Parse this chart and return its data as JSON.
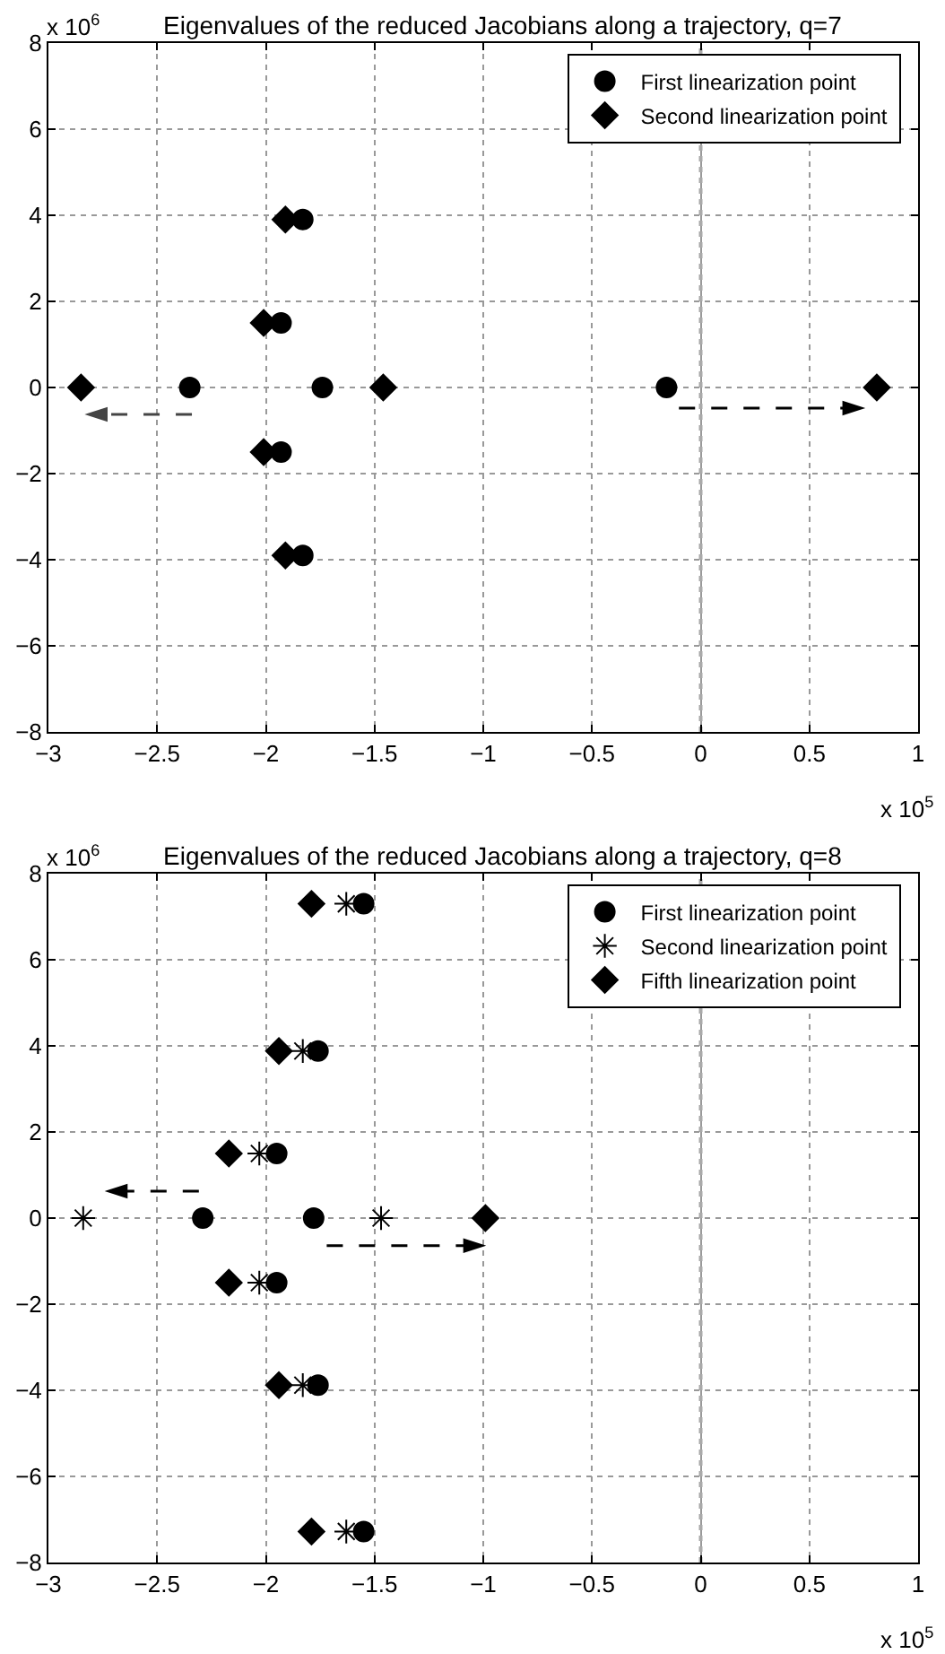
{
  "chart_data": [
    {
      "type": "scatter",
      "title": "Eigenvalues of the reduced Jacobians along a trajectory, q=7",
      "xlim": [
        -3,
        1
      ],
      "xticks": [
        -3,
        -2.5,
        -2,
        -1.5,
        -1,
        -0.5,
        0,
        0.5,
        1
      ],
      "ylim": [
        -8,
        8
      ],
      "yticks": [
        -8,
        -6,
        -4,
        -2,
        0,
        2,
        4,
        6,
        8
      ],
      "grid": true,
      "legend": "top right",
      "annotations": [
        "x 10$^{6}$",
        "x 10$^{5}$"
      ],
      "ref_lines": [
        {
          "axis": "x",
          "value": 0,
          "color": "#aaaaaa",
          "line_style": "dotted"
        }
      ],
      "series": [
        {
          "name": "First linearization point",
          "color": "#000000",
          "marker": "circle",
          "x": [
            -1.83,
            -1.93,
            -2.35,
            -1.74,
            -0.157,
            -1.93,
            -1.83
          ],
          "values": [
            3.9,
            1.5,
            0,
            0,
            0,
            -1.5,
            -3.9
          ]
        },
        {
          "name": "Second linearization point",
          "color": "#000000",
          "marker": "diamond",
          "x": [
            -1.91,
            -2.01,
            -2.85,
            -1.46,
            0.81,
            -2.01,
            -1.91
          ],
          "values": [
            3.9,
            1.5,
            0,
            0,
            0,
            -1.5,
            -3.9
          ]
        }
      ]
    },
    {
      "type": "scatter",
      "title": "Eigenvalues of the reduced Jacobians along a trajectory, q=8",
      "xlim": [
        -3,
        1
      ],
      "xticks": [
        -3,
        -2.5,
        -2,
        -1.5,
        -1,
        -0.5,
        0,
        0.5,
        1
      ],
      "ylim": [
        -8,
        8
      ],
      "yticks": [
        -8,
        -6,
        -4,
        -2,
        0,
        2,
        4,
        6,
        8
      ],
      "grid": true,
      "legend": "top right",
      "annotations": [
        "x 10$^{6}$",
        "x 10$^{5}$"
      ],
      "ref_lines": [
        {
          "axis": "x",
          "value": 0,
          "color": "#aaaaaa",
          "line_style": "dotted"
        }
      ],
      "series": [
        {
          "name": "First linearization point",
          "color": "#000000",
          "marker": "circle",
          "x": [
            -1.55,
            -1.76,
            -1.95,
            -2.29,
            -1.78,
            -1.95,
            -1.76,
            -1.55
          ],
          "values": [
            7.3,
            3.88,
            1.5,
            0,
            0,
            -1.5,
            -3.88,
            -7.28
          ]
        },
        {
          "name": "Second linearization point",
          "color": "#000000",
          "marker": "cross",
          "x": [
            -1.63,
            -1.83,
            -2.03,
            -2.84,
            -1.47,
            -2.03,
            -1.83,
            -1.63
          ],
          "values": [
            7.3,
            3.88,
            1.5,
            0,
            0,
            -1.5,
            -3.88,
            -7.28
          ]
        },
        {
          "name": "Fifth linearization point",
          "color": "#000000",
          "marker": "diamond",
          "x": [
            -1.79,
            -1.94,
            -2.17,
            -0.99,
            -2.17,
            -1.94,
            -1.79
          ],
          "values": [
            7.3,
            3.88,
            1.5,
            0,
            -1.5,
            -3.88,
            -7.28
          ]
        }
      ]
    }
  ]
}
